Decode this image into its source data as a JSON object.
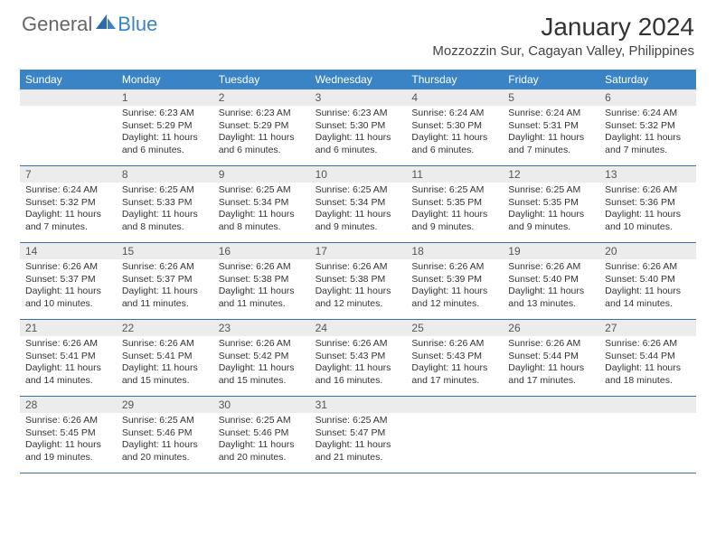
{
  "logo": {
    "general": "General",
    "blue": "Blue"
  },
  "title": "January 2024",
  "location": "Mozzozzin Sur, Cagayan Valley, Philippines",
  "day_headers": [
    "Sunday",
    "Monday",
    "Tuesday",
    "Wednesday",
    "Thursday",
    "Friday",
    "Saturday"
  ],
  "colors": {
    "header_bg": "#3a84c6",
    "date_bg": "#ececec",
    "border": "#3a6fa8",
    "text": "#333333"
  },
  "weeks": [
    [
      {
        "date": "",
        "sunrise": "",
        "sunset": "",
        "daylight": ""
      },
      {
        "date": "1",
        "sunrise": "Sunrise: 6:23 AM",
        "sunset": "Sunset: 5:29 PM",
        "daylight": "Daylight: 11 hours and 6 minutes."
      },
      {
        "date": "2",
        "sunrise": "Sunrise: 6:23 AM",
        "sunset": "Sunset: 5:29 PM",
        "daylight": "Daylight: 11 hours and 6 minutes."
      },
      {
        "date": "3",
        "sunrise": "Sunrise: 6:23 AM",
        "sunset": "Sunset: 5:30 PM",
        "daylight": "Daylight: 11 hours and 6 minutes."
      },
      {
        "date": "4",
        "sunrise": "Sunrise: 6:24 AM",
        "sunset": "Sunset: 5:30 PM",
        "daylight": "Daylight: 11 hours and 6 minutes."
      },
      {
        "date": "5",
        "sunrise": "Sunrise: 6:24 AM",
        "sunset": "Sunset: 5:31 PM",
        "daylight": "Daylight: 11 hours and 7 minutes."
      },
      {
        "date": "6",
        "sunrise": "Sunrise: 6:24 AM",
        "sunset": "Sunset: 5:32 PM",
        "daylight": "Daylight: 11 hours and 7 minutes."
      }
    ],
    [
      {
        "date": "7",
        "sunrise": "Sunrise: 6:24 AM",
        "sunset": "Sunset: 5:32 PM",
        "daylight": "Daylight: 11 hours and 7 minutes."
      },
      {
        "date": "8",
        "sunrise": "Sunrise: 6:25 AM",
        "sunset": "Sunset: 5:33 PM",
        "daylight": "Daylight: 11 hours and 8 minutes."
      },
      {
        "date": "9",
        "sunrise": "Sunrise: 6:25 AM",
        "sunset": "Sunset: 5:34 PM",
        "daylight": "Daylight: 11 hours and 8 minutes."
      },
      {
        "date": "10",
        "sunrise": "Sunrise: 6:25 AM",
        "sunset": "Sunset: 5:34 PM",
        "daylight": "Daylight: 11 hours and 9 minutes."
      },
      {
        "date": "11",
        "sunrise": "Sunrise: 6:25 AM",
        "sunset": "Sunset: 5:35 PM",
        "daylight": "Daylight: 11 hours and 9 minutes."
      },
      {
        "date": "12",
        "sunrise": "Sunrise: 6:25 AM",
        "sunset": "Sunset: 5:35 PM",
        "daylight": "Daylight: 11 hours and 9 minutes."
      },
      {
        "date": "13",
        "sunrise": "Sunrise: 6:26 AM",
        "sunset": "Sunset: 5:36 PM",
        "daylight": "Daylight: 11 hours and 10 minutes."
      }
    ],
    [
      {
        "date": "14",
        "sunrise": "Sunrise: 6:26 AM",
        "sunset": "Sunset: 5:37 PM",
        "daylight": "Daylight: 11 hours and 10 minutes."
      },
      {
        "date": "15",
        "sunrise": "Sunrise: 6:26 AM",
        "sunset": "Sunset: 5:37 PM",
        "daylight": "Daylight: 11 hours and 11 minutes."
      },
      {
        "date": "16",
        "sunrise": "Sunrise: 6:26 AM",
        "sunset": "Sunset: 5:38 PM",
        "daylight": "Daylight: 11 hours and 11 minutes."
      },
      {
        "date": "17",
        "sunrise": "Sunrise: 6:26 AM",
        "sunset": "Sunset: 5:38 PM",
        "daylight": "Daylight: 11 hours and 12 minutes."
      },
      {
        "date": "18",
        "sunrise": "Sunrise: 6:26 AM",
        "sunset": "Sunset: 5:39 PM",
        "daylight": "Daylight: 11 hours and 12 minutes."
      },
      {
        "date": "19",
        "sunrise": "Sunrise: 6:26 AM",
        "sunset": "Sunset: 5:40 PM",
        "daylight": "Daylight: 11 hours and 13 minutes."
      },
      {
        "date": "20",
        "sunrise": "Sunrise: 6:26 AM",
        "sunset": "Sunset: 5:40 PM",
        "daylight": "Daylight: 11 hours and 14 minutes."
      }
    ],
    [
      {
        "date": "21",
        "sunrise": "Sunrise: 6:26 AM",
        "sunset": "Sunset: 5:41 PM",
        "daylight": "Daylight: 11 hours and 14 minutes."
      },
      {
        "date": "22",
        "sunrise": "Sunrise: 6:26 AM",
        "sunset": "Sunset: 5:41 PM",
        "daylight": "Daylight: 11 hours and 15 minutes."
      },
      {
        "date": "23",
        "sunrise": "Sunrise: 6:26 AM",
        "sunset": "Sunset: 5:42 PM",
        "daylight": "Daylight: 11 hours and 15 minutes."
      },
      {
        "date": "24",
        "sunrise": "Sunrise: 6:26 AM",
        "sunset": "Sunset: 5:43 PM",
        "daylight": "Daylight: 11 hours and 16 minutes."
      },
      {
        "date": "25",
        "sunrise": "Sunrise: 6:26 AM",
        "sunset": "Sunset: 5:43 PM",
        "daylight": "Daylight: 11 hours and 17 minutes."
      },
      {
        "date": "26",
        "sunrise": "Sunrise: 6:26 AM",
        "sunset": "Sunset: 5:44 PM",
        "daylight": "Daylight: 11 hours and 17 minutes."
      },
      {
        "date": "27",
        "sunrise": "Sunrise: 6:26 AM",
        "sunset": "Sunset: 5:44 PM",
        "daylight": "Daylight: 11 hours and 18 minutes."
      }
    ],
    [
      {
        "date": "28",
        "sunrise": "Sunrise: 6:26 AM",
        "sunset": "Sunset: 5:45 PM",
        "daylight": "Daylight: 11 hours and 19 minutes."
      },
      {
        "date": "29",
        "sunrise": "Sunrise: 6:25 AM",
        "sunset": "Sunset: 5:46 PM",
        "daylight": "Daylight: 11 hours and 20 minutes."
      },
      {
        "date": "30",
        "sunrise": "Sunrise: 6:25 AM",
        "sunset": "Sunset: 5:46 PM",
        "daylight": "Daylight: 11 hours and 20 minutes."
      },
      {
        "date": "31",
        "sunrise": "Sunrise: 6:25 AM",
        "sunset": "Sunset: 5:47 PM",
        "daylight": "Daylight: 11 hours and 21 minutes."
      },
      {
        "date": "",
        "sunrise": "",
        "sunset": "",
        "daylight": ""
      },
      {
        "date": "",
        "sunrise": "",
        "sunset": "",
        "daylight": ""
      },
      {
        "date": "",
        "sunrise": "",
        "sunset": "",
        "daylight": ""
      }
    ]
  ]
}
